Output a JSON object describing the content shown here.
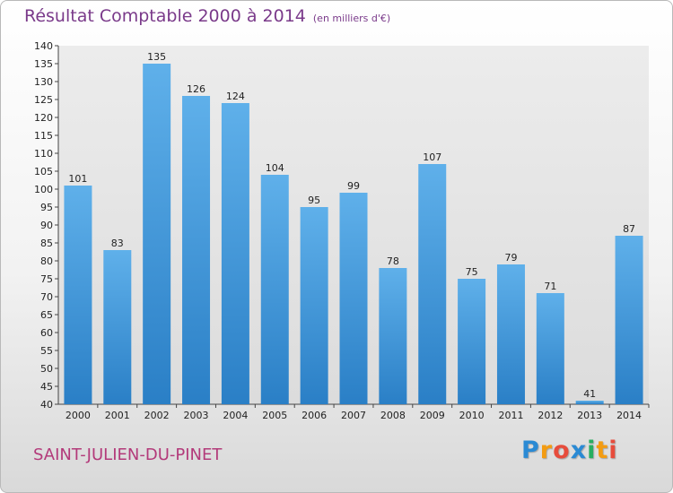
{
  "header": {
    "title": "Résultat Comptable 2000 à 2014",
    "subtitle": "(en milliers d'€)"
  },
  "footer": {
    "city": "SAINT-JULIEN-DU-PINET",
    "logo_letters": [
      "P",
      "r",
      "o",
      "x",
      "i",
      "t",
      "i"
    ],
    "logo_colors": [
      "#2a8ad4",
      "#f39c12",
      "#e74c3c",
      "#2a8ad4",
      "#27ae60",
      "#f39c12",
      "#e74c3c"
    ]
  },
  "chart_data": {
    "type": "bar",
    "title": "Résultat Comptable 2000 à 2014",
    "subtitle": "(en milliers d'€)",
    "xlabel": "",
    "ylabel": "",
    "categories": [
      "2000",
      "2001",
      "2002",
      "2003",
      "2004",
      "2005",
      "2006",
      "2007",
      "2008",
      "2009",
      "2010",
      "2011",
      "2012",
      "2013",
      "2014"
    ],
    "values": [
      101,
      83,
      135,
      126,
      124,
      104,
      95,
      99,
      78,
      107,
      75,
      79,
      71,
      41,
      87
    ],
    "ylim": [
      40,
      140
    ],
    "yticks": [
      40,
      45,
      50,
      55,
      60,
      65,
      70,
      75,
      80,
      85,
      90,
      95,
      100,
      105,
      110,
      115,
      120,
      125,
      130,
      135,
      140
    ],
    "grid": false,
    "bar_color": "#4a9fe0"
  }
}
